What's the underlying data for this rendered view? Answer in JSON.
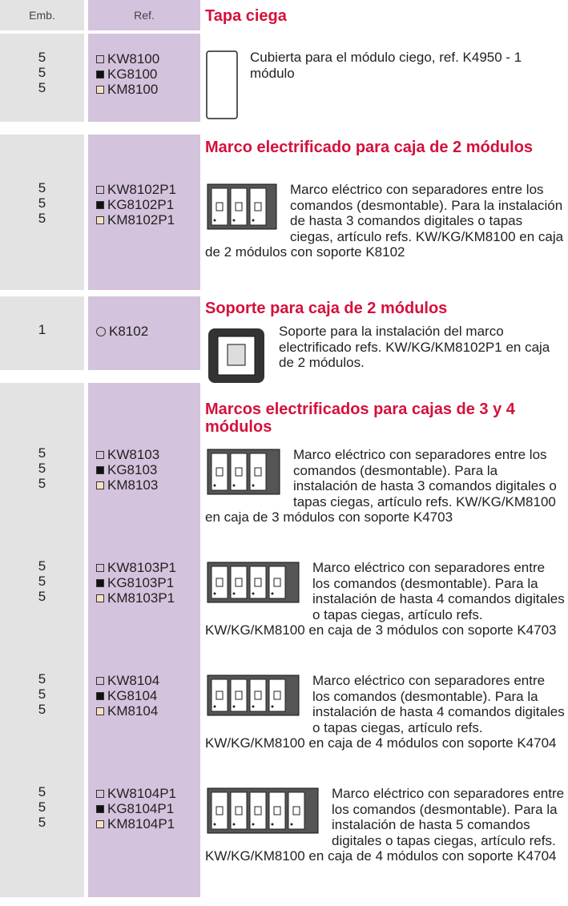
{
  "header": {
    "emb": "Emb.",
    "ref": "Ref."
  },
  "sections": [
    {
      "title": "Tapa ciega",
      "items": [
        {
          "emb": [
            5,
            5,
            5
          ],
          "refs": [
            "KW8100",
            "KG8100",
            "KM8100"
          ],
          "description": "Cubierta para el módulo ciego, ref. K4950 - 1 módulo"
        }
      ]
    },
    {
      "title": "Marco electrificado para caja de 2 módulos",
      "items": [
        {
          "emb": [
            5,
            5,
            5
          ],
          "refs": [
            "KW8102P1",
            "KG8102P1",
            "KM8102P1"
          ],
          "description": "Marco eléctrico con separadores entre los comandos (desmontable). Para la instalación de hasta 3 comandos digitales o tapas ciegas, artículo refs. KW/KG/KM8100 en caja de 2 módulos con soporte K8102"
        }
      ]
    },
    {
      "title": "Soporte para caja de 2 módulos",
      "items": [
        {
          "emb": [
            1
          ],
          "refs": [
            "K8102"
          ],
          "description": "Soporte para la instalación del marco electrificado refs. KW/KG/KM8102P1 en caja de 2 módulos."
        }
      ]
    },
    {
      "title": "Marcos electrificados para cajas de 3 y 4 módulos",
      "items": [
        {
          "emb": [
            5,
            5,
            5
          ],
          "refs": [
            "KW8103",
            "KG8103",
            "KM8103"
          ],
          "description": "Marco eléctrico con separadores entre los comandos (desmontable). Para la instalación de hasta 3 comandos digitales o tapas ciegas, artículo refs. KW/KG/KM8100 en caja de 3 módulos con soporte K4703"
        },
        {
          "emb": [
            5,
            5,
            5
          ],
          "refs": [
            "KW8103P1",
            "KG8103P1",
            "KM8103P1"
          ],
          "description": "Marco eléctrico con separadores entre los comandos (desmontable). Para la instalación de hasta 4 comandos digitales o tapas ciegas, artículo refs. KW/KG/KM8100 en caja de 3 módulos con soporte K4703"
        },
        {
          "emb": [
            5,
            5,
            5
          ],
          "refs": [
            "KW8104",
            "KG8104",
            "KM8104"
          ],
          "description": "Marco eléctrico con separadores entre los comandos (desmontable). Para la instalación de hasta 4 comandos digitales o tapas ciegas, artículo refs. KW/KG/KM8100 en caja de 4 módulos con soporte K4704"
        },
        {
          "emb": [
            5,
            5,
            5
          ],
          "refs": [
            "KW8104P1",
            "KG8104P1",
            "KM8104P1"
          ],
          "description": "Marco eléctrico con separadores entre los comandos (desmontable). Para la instalación de hasta 5 comandos digitales o tapas ciegas, artículo refs. KW/KG/KM8100 en caja de 4 módulos con soporte K4704"
        }
      ]
    }
  ]
}
